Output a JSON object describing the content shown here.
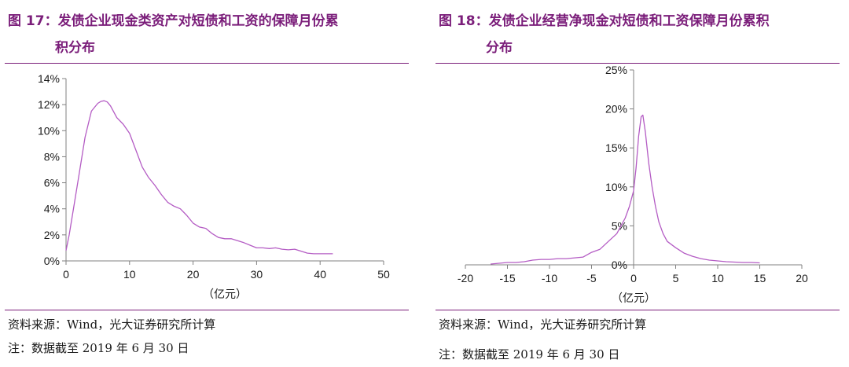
{
  "left": {
    "title_line1": "图 17：发债企业现金类资产对短债和工资的保障月份累",
    "title_line2": "积分布",
    "source": "资料来源：Wind，光大证券研究所计算",
    "note": "注：数据截至 2019 年 6 月 30 日"
  },
  "right": {
    "title_line1": "图 18：发债企业经营净现金对短债和工资保障月份累积",
    "title_line2": "分布",
    "source": "资料来源：Wind，光大证券研究所计算",
    "note": "注：数据截至 2019 年 6 月 30 日"
  },
  "colors": {
    "title": "#7b1e7a",
    "series": "#b45cc4",
    "axis": "#808080"
  },
  "chart_data": [
    {
      "type": "line",
      "xlabel": "（亿元）",
      "ylabel": "",
      "xlim": [
        0,
        50
      ],
      "ylim": [
        0,
        14
      ],
      "x_ticks": [
        0,
        10,
        20,
        30,
        40,
        50
      ],
      "y_ticks": [
        0,
        2,
        4,
        6,
        8,
        10,
        12,
        14
      ],
      "y_tick_labels": [
        "0%",
        "2%",
        "4%",
        "6%",
        "8%",
        "10%",
        "12%",
        "14%"
      ],
      "grid": false,
      "series": [
        {
          "x": [
            0,
            0.5,
            1,
            2,
            3,
            4,
            5,
            5.5,
            6,
            6.5,
            7,
            8,
            9,
            10,
            11,
            12,
            13,
            14,
            15,
            16,
            17,
            18,
            19,
            20,
            21,
            22,
            23,
            24,
            25,
            26,
            27,
            28,
            29,
            30,
            31,
            32,
            33,
            34,
            35,
            36,
            37,
            38,
            39,
            40,
            41,
            42
          ],
          "y": [
            0.8,
            2.0,
            3.5,
            6.5,
            9.5,
            11.5,
            12.1,
            12.25,
            12.3,
            12.2,
            11.9,
            11.0,
            10.5,
            9.8,
            8.5,
            7.2,
            6.4,
            5.8,
            5.1,
            4.5,
            4.2,
            4.0,
            3.5,
            2.9,
            2.6,
            2.5,
            2.1,
            1.8,
            1.7,
            1.7,
            1.55,
            1.4,
            1.2,
            1.0,
            1.0,
            0.95,
            1.0,
            0.9,
            0.85,
            0.9,
            0.75,
            0.6,
            0.55,
            0.55,
            0.55,
            0.55
          ]
        }
      ]
    },
    {
      "type": "line",
      "xlabel": "（亿元）",
      "ylabel": "",
      "xlim": [
        -20,
        20
      ],
      "ylim": [
        0,
        25
      ],
      "x_ticks": [
        -20,
        -15,
        -10,
        -5,
        0,
        5,
        10,
        15,
        20
      ],
      "y_ticks": [
        0,
        5,
        10,
        15,
        20,
        25
      ],
      "y_tick_labels": [
        "0%",
        "5%",
        "10%",
        "15%",
        "20%",
        "25%"
      ],
      "grid": false,
      "series": [
        {
          "x": [
            -17,
            -16,
            -15,
            -14,
            -13,
            -12,
            -11,
            -10,
            -9,
            -8,
            -7,
            -6,
            -5,
            -4,
            -3,
            -2,
            -1,
            -0.5,
            0,
            0.3,
            0.6,
            0.9,
            1.1,
            1.4,
            1.8,
            2.2,
            2.6,
            3,
            3.5,
            4,
            5,
            6,
            7,
            8,
            9,
            10,
            11,
            12,
            13,
            14,
            15
          ],
          "y": [
            0.1,
            0.2,
            0.3,
            0.3,
            0.4,
            0.6,
            0.7,
            0.7,
            0.8,
            0.8,
            0.9,
            1.0,
            1.6,
            2.0,
            3.0,
            4.0,
            6.0,
            7.5,
            9.5,
            12.5,
            16.5,
            19.0,
            19.2,
            17.0,
            13.0,
            10.0,
            7.5,
            5.5,
            4.0,
            3.0,
            2.2,
            1.5,
            1.1,
            0.8,
            0.6,
            0.5,
            0.4,
            0.35,
            0.3,
            0.3,
            0.25
          ]
        }
      ]
    }
  ]
}
